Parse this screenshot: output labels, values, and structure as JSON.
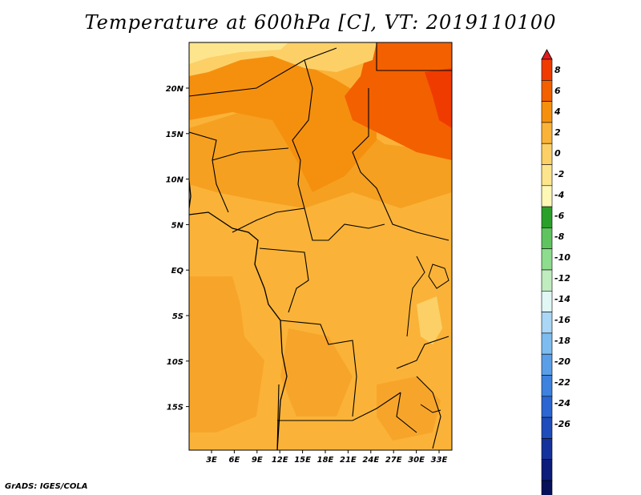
{
  "title": "Temperature at 600hPa [C], VT: 2019110100",
  "footer": "GrADS: IGES/COLA",
  "map": {
    "lat_labels": [
      "20N",
      "15N",
      "10N",
      "5N",
      "EQ",
      "5S",
      "10S",
      "15S"
    ],
    "lon_labels": [
      "3E",
      "6E",
      "9E",
      "12E",
      "15E",
      "18E",
      "21E",
      "24E",
      "27E",
      "30E",
      "33E"
    ]
  },
  "colorbar": {
    "levels": [
      "8",
      "6",
      "4",
      "2",
      "0",
      "-2",
      "-4",
      "-6",
      "-8",
      "-10",
      "-12",
      "-14",
      "-16",
      "-18",
      "-20",
      "-22",
      "-24",
      "-26"
    ],
    "colors": [
      "#e31a1c",
      "#f03b00",
      "#f36000",
      "#f5900f",
      "#fab338",
      "#fcd067",
      "#fde58d",
      "#fef7b6",
      "#2aa02a",
      "#5fc45f",
      "#8edc8e",
      "#c0ecc0",
      "#e0f7f5",
      "#a9d7f5",
      "#7ebcef",
      "#5a9ee8",
      "#3d82de",
      "#2b66d2",
      "#1f4cbb",
      "#15329c",
      "#0c1c7a",
      "#06115a",
      "#d9d9ff"
    ]
  }
}
